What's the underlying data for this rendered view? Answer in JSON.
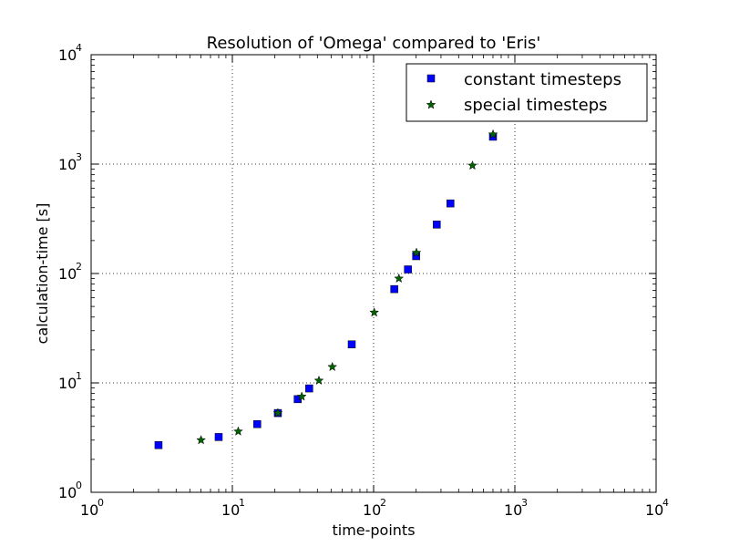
{
  "chart_data": {
    "type": "scatter",
    "title": "Resolution of 'Omega' compared to 'Eris'",
    "xlabel": "time-points",
    "ylabel": "calculation-time [s]",
    "xscale": "log",
    "yscale": "log",
    "xlim": [
      1,
      10000
    ],
    "ylim": [
      1,
      10000
    ],
    "xticks": [
      {
        "base": "10",
        "exp": "0"
      },
      {
        "base": "10",
        "exp": "1"
      },
      {
        "base": "10",
        "exp": "2"
      },
      {
        "base": "10",
        "exp": "3"
      },
      {
        "base": "10",
        "exp": "4"
      }
    ],
    "yticks": [
      {
        "base": "10",
        "exp": "0"
      },
      {
        "base": "10",
        "exp": "1"
      },
      {
        "base": "10",
        "exp": "2"
      },
      {
        "base": "10",
        "exp": "3"
      },
      {
        "base": "10",
        "exp": "4"
      }
    ],
    "grid": true,
    "legend_position": "top-right",
    "series": [
      {
        "name": "constant timesteps",
        "marker": "square",
        "color": "#0000ff",
        "x": [
          3,
          8,
          15,
          21,
          29,
          35,
          70,
          140,
          175,
          200,
          280,
          350,
          700
        ],
        "y": [
          2.7,
          3.2,
          4.2,
          5.3,
          7.1,
          8.9,
          22.5,
          72,
          109,
          144,
          280,
          437,
          1780
        ]
      },
      {
        "name": "special timesteps",
        "marker": "star",
        "color": "#006400",
        "x": [
          6,
          11,
          21,
          31,
          41,
          51,
          101,
          151,
          201,
          501,
          701
        ],
        "y": [
          3.0,
          3.6,
          5.3,
          7.5,
          10.5,
          14,
          44,
          90,
          155,
          970,
          1870
        ]
      }
    ]
  }
}
